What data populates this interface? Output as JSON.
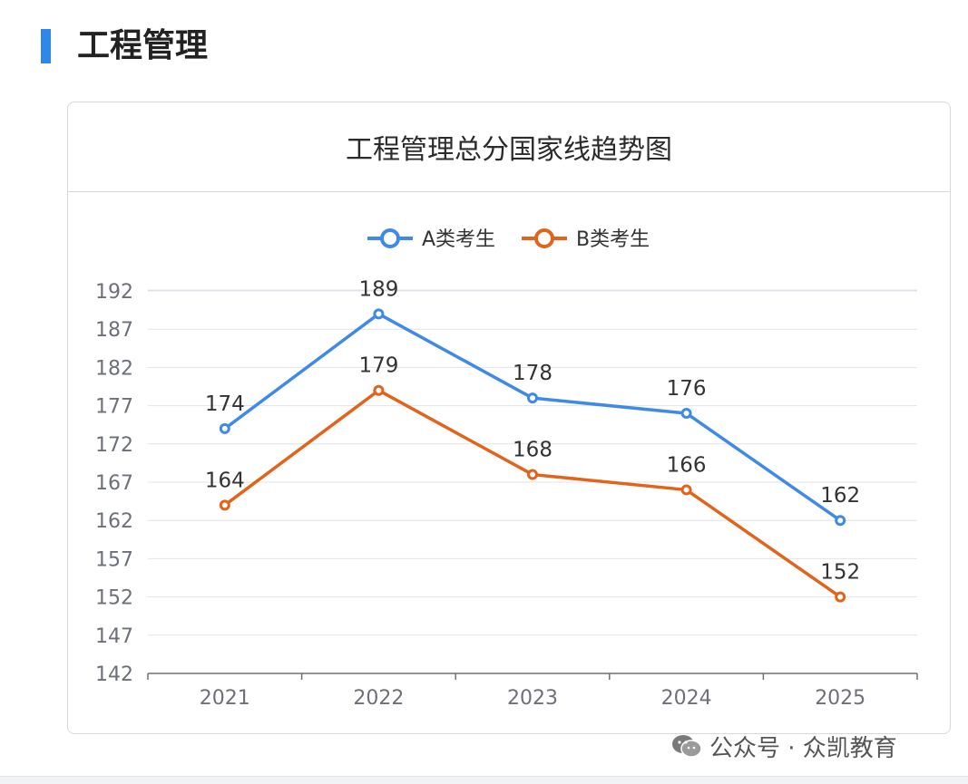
{
  "section": {
    "title": "工程管理"
  },
  "card": {
    "title": "工程管理总分国家线趋势图"
  },
  "footer": {
    "text": "公众号 · 众凯教育",
    "icon": "wechat-icon"
  },
  "colors": {
    "accent": "#2f88e9",
    "seriesA": "#3f8ae8",
    "seriesB": "#e2631a",
    "grid": "#e0e3ea",
    "axis": "#6e7079"
  },
  "chart_data": {
    "type": "line",
    "title": "工程管理总分国家线趋势图",
    "categories": [
      "2021",
      "2022",
      "2023",
      "2024",
      "2025"
    ],
    "series": [
      {
        "name": "A类考生",
        "values": [
          174,
          189,
          178,
          176,
          162
        ],
        "color": "#3f8ae8"
      },
      {
        "name": "B类考生",
        "values": [
          164,
          179,
          168,
          166,
          152
        ],
        "color": "#e2631a"
      }
    ],
    "yticks": [
      142,
      147,
      152,
      157,
      162,
      167,
      172,
      177,
      182,
      187,
      192
    ],
    "ylim": [
      142,
      192
    ],
    "grid": true,
    "legend": "top-center",
    "xlabel": "",
    "ylabel": ""
  }
}
